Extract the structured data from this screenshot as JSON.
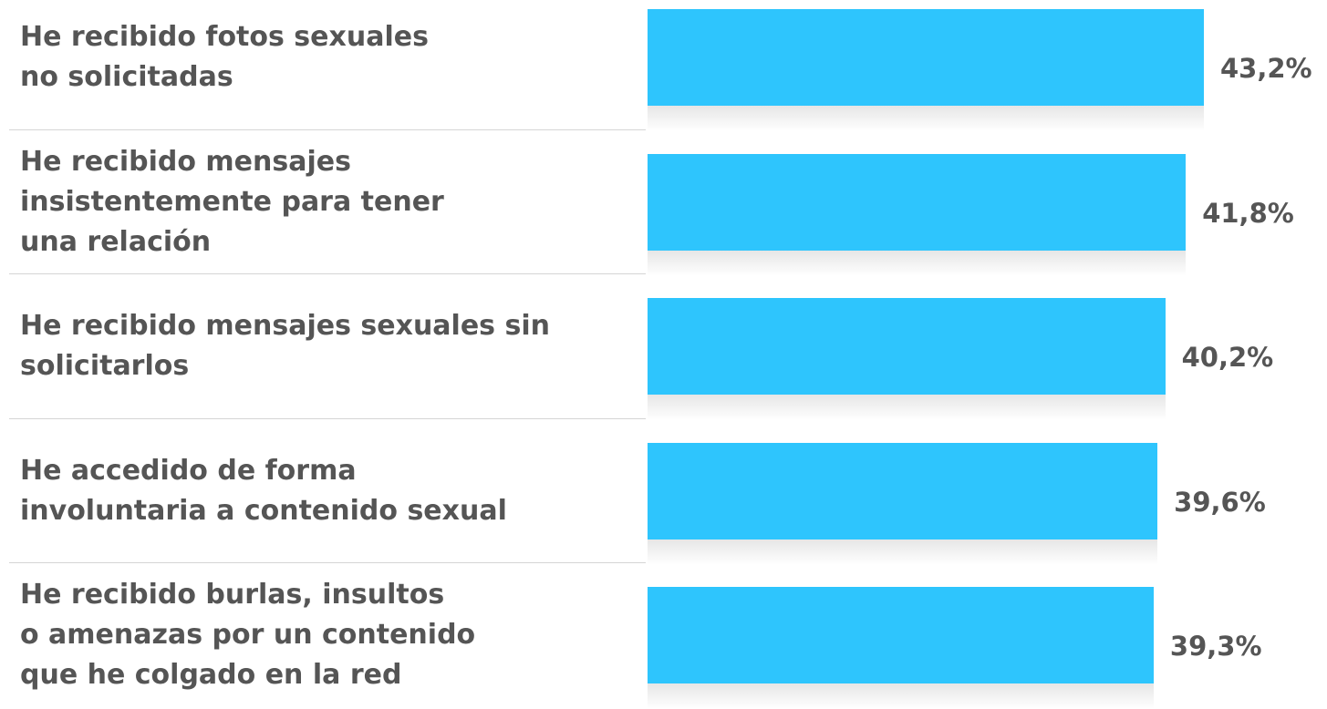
{
  "chart_data": {
    "type": "hbar",
    "categories": [
      "He recibido fotos sexuales\nno solicitadas",
      "He recibido mensajes\ninsistentemente para tener\nuna relación",
      "He recibido mensajes sexuales sin\nsolicitarlos",
      "He accedido de forma\ninvoluntaria a contenido sexual",
      "He recibido burlas, insultos\no amenazas por un contenido\nque he colgado en la red"
    ],
    "values": [
      43.2,
      41.8,
      40.2,
      39.6,
      39.3
    ],
    "value_labels": [
      "43,2%",
      "41,8%",
      "40,2%",
      "39,6%",
      "39,3%"
    ],
    "color": "#2ec5fd",
    "xlim": [
      0,
      50
    ]
  }
}
